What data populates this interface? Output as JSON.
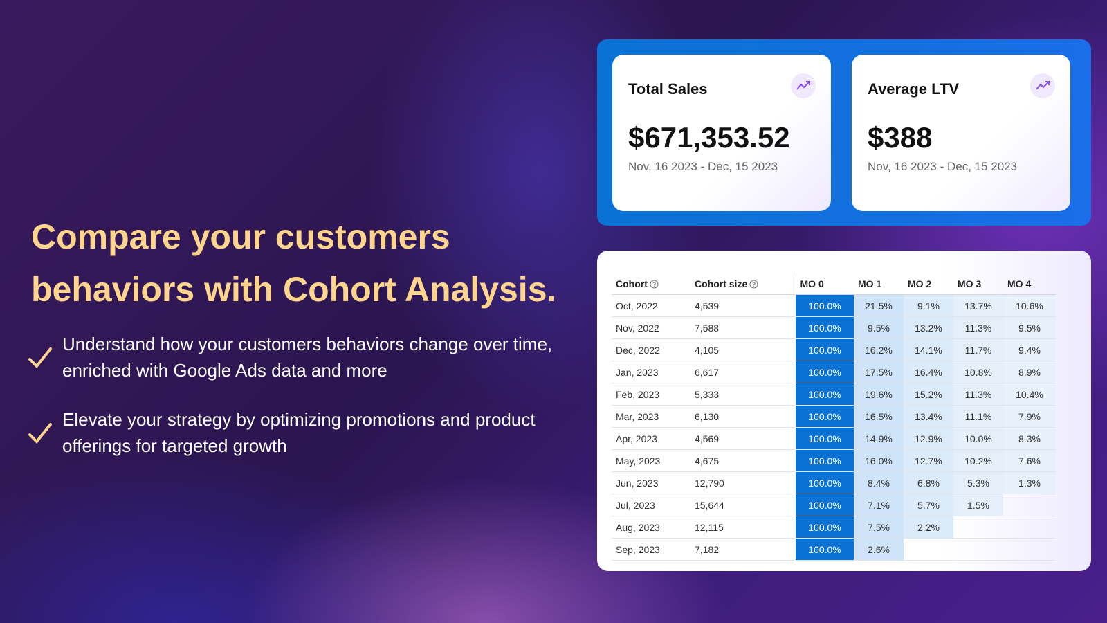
{
  "hero": {
    "headline": [
      "Compare your customers",
      "behaviors with Cohort Analysis."
    ],
    "bullets": [
      "Understand how your customers behaviors change over time, enriched with Google Ads data and more",
      "Elevate your strategy by optimizing promotions and product offerings for targeted growth"
    ]
  },
  "cards": [
    {
      "title": "Total Sales",
      "value": "$671,353.52",
      "period": "Nov, 16 2023 - Dec, 15 2023"
    },
    {
      "title": "Average LTV",
      "value": "$388",
      "period": "Nov, 16 2023 - Dec, 15 2023"
    }
  ],
  "table": {
    "header": [
      "Cohort",
      "Cohort size",
      "MO 0",
      "MO 1",
      "MO 2",
      "MO 3",
      "MO 4"
    ],
    "rows": [
      {
        "cohort": "Oct, 2022",
        "size": "4,539",
        "retention": [
          "100.0%",
          "21.5%",
          "9.1%",
          "13.7%",
          "10.6%"
        ]
      },
      {
        "cohort": "Nov, 2022",
        "size": "7,588",
        "retention": [
          "100.0%",
          "9.5%",
          "13.2%",
          "11.3%",
          "9.5%"
        ]
      },
      {
        "cohort": "Dec, 2022",
        "size": "4,105",
        "retention": [
          "100.0%",
          "16.2%",
          "14.1%",
          "11.7%",
          "9.4%"
        ]
      },
      {
        "cohort": "Jan, 2023",
        "size": "6,617",
        "retention": [
          "100.0%",
          "17.5%",
          "16.4%",
          "10.8%",
          "8.9%"
        ]
      },
      {
        "cohort": "Feb, 2023",
        "size": "5,333",
        "retention": [
          "100.0%",
          "19.6%",
          "15.2%",
          "11.3%",
          "10.4%"
        ]
      },
      {
        "cohort": "Mar, 2023",
        "size": "6,130",
        "retention": [
          "100.0%",
          "16.5%",
          "13.4%",
          "11.1%",
          "7.9%"
        ]
      },
      {
        "cohort": "Apr, 2023",
        "size": "4,569",
        "retention": [
          "100.0%",
          "14.9%",
          "12.9%",
          "10.0%",
          "8.3%"
        ]
      },
      {
        "cohort": "May, 2023",
        "size": "4,675",
        "retention": [
          "100.0%",
          "16.0%",
          "12.7%",
          "10.2%",
          "7.6%"
        ]
      },
      {
        "cohort": "Jun, 2023",
        "size": "12,790",
        "retention": [
          "100.0%",
          "8.4%",
          "6.8%",
          "5.3%",
          "1.3%"
        ]
      },
      {
        "cohort": "Jul, 2023",
        "size": "15,644",
        "retention": [
          "100.0%",
          "7.1%",
          "5.7%",
          "1.5%"
        ]
      },
      {
        "cohort": "Aug, 2023",
        "size": "12,115",
        "retention": [
          "100.0%",
          "7.5%",
          "2.2%"
        ]
      },
      {
        "cohort": "Sep, 2023",
        "size": "7,182",
        "retention": [
          "100.0%",
          "2.6%"
        ]
      }
    ]
  }
}
